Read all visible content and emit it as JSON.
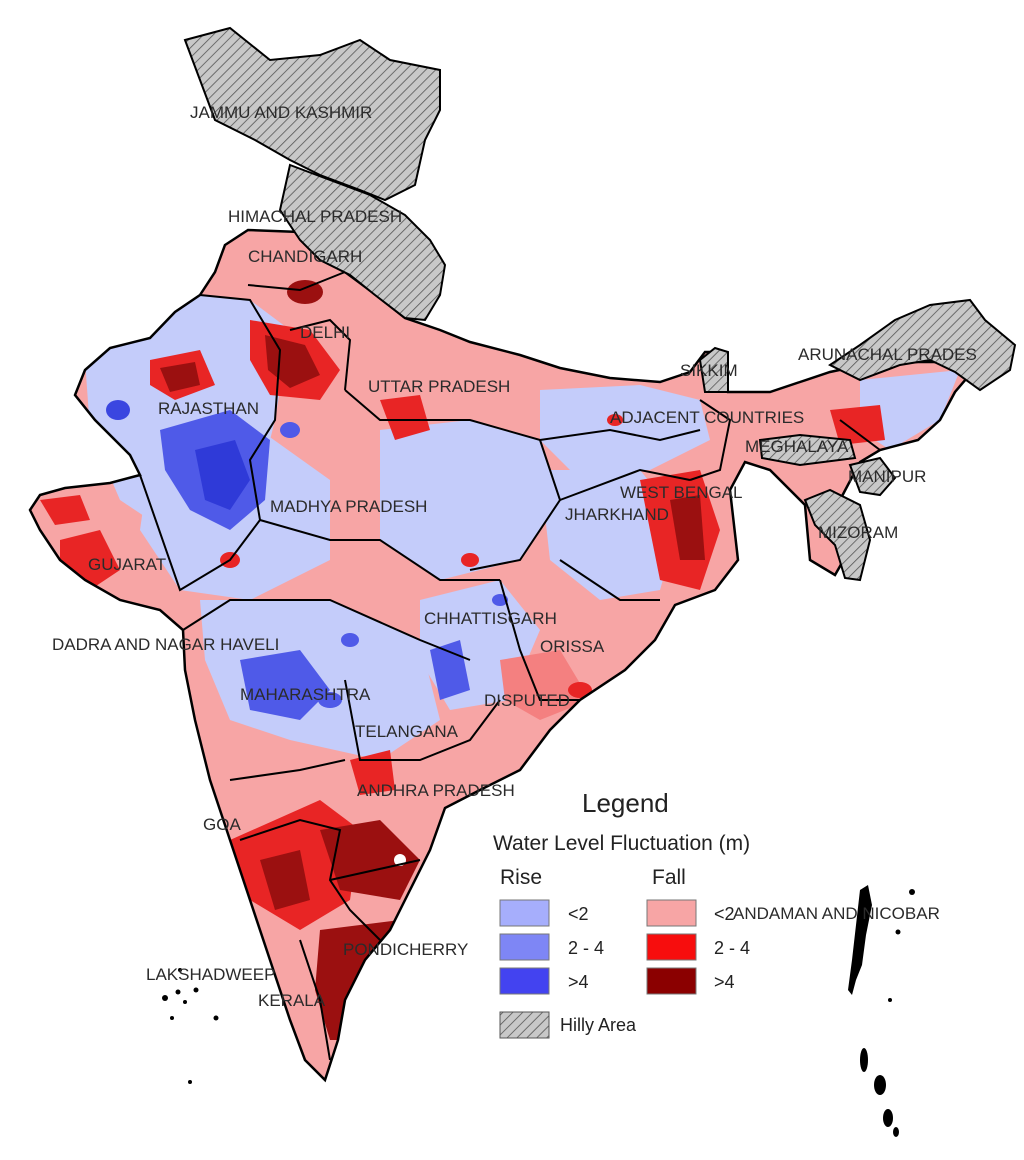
{
  "state_labels": [
    "JAMMU AND KASHMIR",
    "HIMACHAL PRADESH",
    "CHANDIGARH",
    "DELHI",
    "RAJASTHAN",
    "UTTAR PRADESH",
    "SIKKIM",
    "ARUNACHAL PRADES",
    "ADJACENT COUNTRIES",
    "MEGHALAYA",
    "MANIPUR",
    "WEST BENGAL",
    "JHARKHAND",
    "MIZORAM",
    "MADHYA PRADESH",
    "GUJARAT",
    "CHHATTISGARH",
    "ORISSA",
    "DADRA AND NAGAR HAVELI",
    "MAHARASHTRA",
    "DISPUTED",
    "TELANGANA",
    "ANDHRA PRADESH",
    "GOA",
    "PONDICHERRY",
    "ANDAMAN AND NICOBAR",
    "LAKSHADWEEP",
    "KERALA"
  ],
  "legend": {
    "title": "Legend",
    "subtitle": "Water Level Fluctuation  (m)",
    "rise_header": "Rise",
    "fall_header": "Fall",
    "rise": [
      {
        "label": "<2",
        "color": "#a6aefc"
      },
      {
        "label": "2 - 4",
        "color": "#7e86f5"
      },
      {
        "label": ">4",
        "color": "#4343f0"
      }
    ],
    "fall": [
      {
        "label": "<2",
        "color": "#f7a5a5"
      },
      {
        "label": "2 - 4",
        "color": "#f70d0d"
      },
      {
        "label": ">4",
        "color": "#8b0000"
      }
    ],
    "hilly_label": "Hilly Area"
  },
  "colors": {
    "hilly_fill": "#c8c8c8",
    "border": "#000000",
    "rise_light": "#c4ccfa",
    "fall_light": "#f7a5a5"
  }
}
